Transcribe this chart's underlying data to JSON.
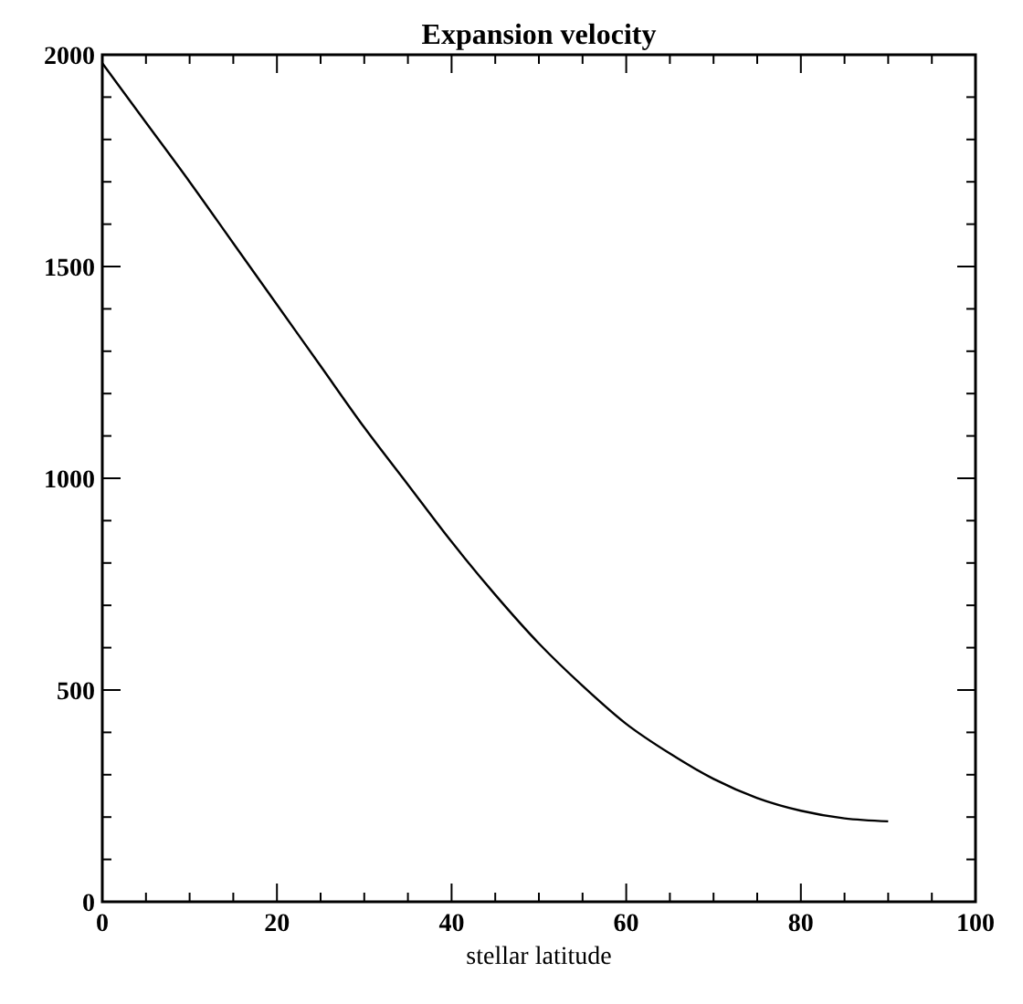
{
  "chart_data": {
    "type": "line",
    "title": "Expansion velocity",
    "xlabel": "stellar latitude",
    "x": [
      0,
      5,
      10,
      15,
      20,
      25,
      30,
      35,
      40,
      45,
      50,
      55,
      60,
      65,
      70,
      75,
      80,
      85,
      90
    ],
    "series": [
      {
        "color": "#000000",
        "values": [
          1980,
          1840,
          1700,
          1555,
          1410,
          1265,
          1120,
          985,
          850,
          725,
          610,
          510,
          420,
          350,
          290,
          245,
          215,
          197,
          190
        ]
      }
    ],
    "xlim": [
      0,
      100
    ],
    "xticks": [
      0,
      20,
      40,
      60,
      80,
      100
    ],
    "ylim": [
      0,
      2000
    ],
    "yticks": [
      0,
      500,
      1000,
      1500,
      2000
    ],
    "grid": false,
    "marker": "none",
    "line_style": "solid"
  }
}
